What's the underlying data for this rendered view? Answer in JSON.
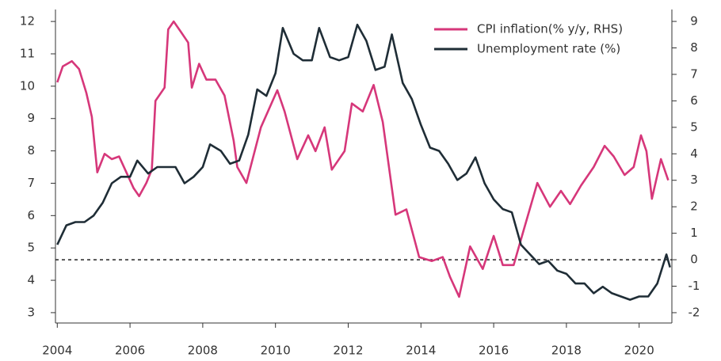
{
  "chart_data": {
    "type": "line",
    "xlim": [
      2003.95,
      2020.9
    ],
    "xticks": [
      2004,
      2006,
      2008,
      2010,
      2012,
      2014,
      2016,
      2018,
      2020
    ],
    "ylim": [
      2.68,
      12.37
    ],
    "yticks": [
      3,
      4,
      5,
      6,
      7,
      8,
      9,
      10,
      11,
      12
    ],
    "y2lim": [
      -2.39,
      9.45
    ],
    "y2ticks": [
      -2,
      -1,
      0,
      1,
      2,
      3,
      4,
      5,
      6,
      7,
      8,
      9
    ],
    "legend": "upper right",
    "reference_line": {
      "axis": "y2",
      "value": 0,
      "style": "dashed",
      "color": "#222"
    },
    "series": [
      {
        "name": "CPI inflation(% y/y, RHS)",
        "color": "#d6377a",
        "axis": "y2",
        "x": [
          2004.0,
          2004.15,
          2004.4,
          2004.6,
          2004.8,
          2004.95,
          2005.1,
          2005.3,
          2005.5,
          2005.7,
          2005.9,
          2006.1,
          2006.25,
          2006.45,
          2006.6,
          2006.7,
          2006.95,
          2007.05,
          2007.2,
          2007.4,
          2007.6,
          2007.7,
          2007.9,
          2008.1,
          2008.35,
          2008.6,
          2008.85,
          2008.95,
          2009.2,
          2009.6,
          2010.05,
          2010.25,
          2010.6,
          2010.9,
          2011.1,
          2011.35,
          2011.55,
          2011.9,
          2012.1,
          2012.4,
          2012.7,
          2012.95,
          2013.3,
          2013.6,
          2013.95,
          2014.3,
          2014.6,
          2014.8,
          2015.05,
          2015.35,
          2015.7,
          2016.0,
          2016.25,
          2016.55,
          2016.8,
          2017.2,
          2017.55,
          2017.85,
          2018.1,
          2018.4,
          2018.75,
          2019.05,
          2019.3,
          2019.6,
          2019.85,
          2020.05,
          2020.2,
          2020.35,
          2020.6,
          2020.8
        ],
        "values": [
          6.7,
          7.3,
          7.5,
          7.2,
          6.3,
          5.4,
          3.3,
          4.0,
          3.8,
          3.9,
          3.3,
          2.7,
          2.4,
          2.9,
          3.4,
          6.0,
          6.5,
          8.7,
          9.0,
          8.6,
          8.2,
          6.5,
          7.4,
          6.8,
          6.8,
          6.2,
          4.5,
          3.5,
          2.9,
          5.0,
          6.4,
          5.6,
          3.8,
          4.7,
          4.1,
          5.0,
          3.4,
          4.1,
          5.9,
          5.6,
          6.6,
          5.2,
          1.7,
          1.9,
          0.1,
          -0.05,
          0.1,
          -0.65,
          -1.4,
          0.5,
          -0.35,
          0.9,
          -0.2,
          -0.2,
          1.0,
          2.9,
          2.0,
          2.6,
          2.1,
          2.8,
          3.5,
          4.3,
          3.9,
          3.2,
          3.5,
          4.7,
          4.1,
          2.3,
          3.8,
          3.0
        ]
      },
      {
        "name": "Unemployment rate (%)",
        "color": "#1f2d36",
        "axis": "y",
        "x": [
          2004.0,
          2004.25,
          2004.5,
          2004.75,
          2005.0,
          2005.25,
          2005.5,
          2005.75,
          2006.0,
          2006.2,
          2006.5,
          2006.75,
          2007.0,
          2007.25,
          2007.5,
          2007.75,
          2008.0,
          2008.2,
          2008.5,
          2008.75,
          2009.0,
          2009.25,
          2009.5,
          2009.75,
          2010.0,
          2010.2,
          2010.5,
          2010.75,
          2011.0,
          2011.2,
          2011.5,
          2011.75,
          2012.0,
          2012.25,
          2012.5,
          2012.75,
          2013.0,
          2013.2,
          2013.5,
          2013.75,
          2014.0,
          2014.25,
          2014.5,
          2014.75,
          2015.0,
          2015.25,
          2015.5,
          2015.75,
          2016.0,
          2016.25,
          2016.5,
          2016.75,
          2017.0,
          2017.25,
          2017.5,
          2017.75,
          2018.0,
          2018.25,
          2018.5,
          2018.75,
          2019.0,
          2019.25,
          2019.5,
          2019.75,
          2020.0,
          2020.25,
          2020.5,
          2020.75,
          2020.85
        ],
        "values": [
          5.1,
          5.7,
          5.8,
          5.8,
          6.0,
          6.4,
          7.0,
          7.2,
          7.2,
          7.7,
          7.3,
          7.5,
          7.5,
          7.5,
          7.0,
          7.2,
          7.5,
          8.2,
          8.0,
          7.6,
          7.7,
          8.5,
          9.9,
          9.7,
          10.4,
          11.8,
          11.0,
          10.8,
          10.8,
          11.8,
          10.9,
          10.8,
          10.9,
          11.9,
          11.4,
          10.5,
          10.6,
          11.6,
          10.1,
          9.6,
          8.8,
          8.1,
          8.0,
          7.6,
          7.1,
          7.3,
          7.8,
          7.0,
          6.5,
          6.2,
          6.1,
          5.1,
          4.8,
          4.5,
          4.6,
          4.3,
          4.2,
          3.9,
          3.9,
          3.6,
          3.8,
          3.6,
          3.5,
          3.4,
          3.5,
          3.5,
          3.9,
          4.8,
          4.4
        ]
      }
    ]
  }
}
